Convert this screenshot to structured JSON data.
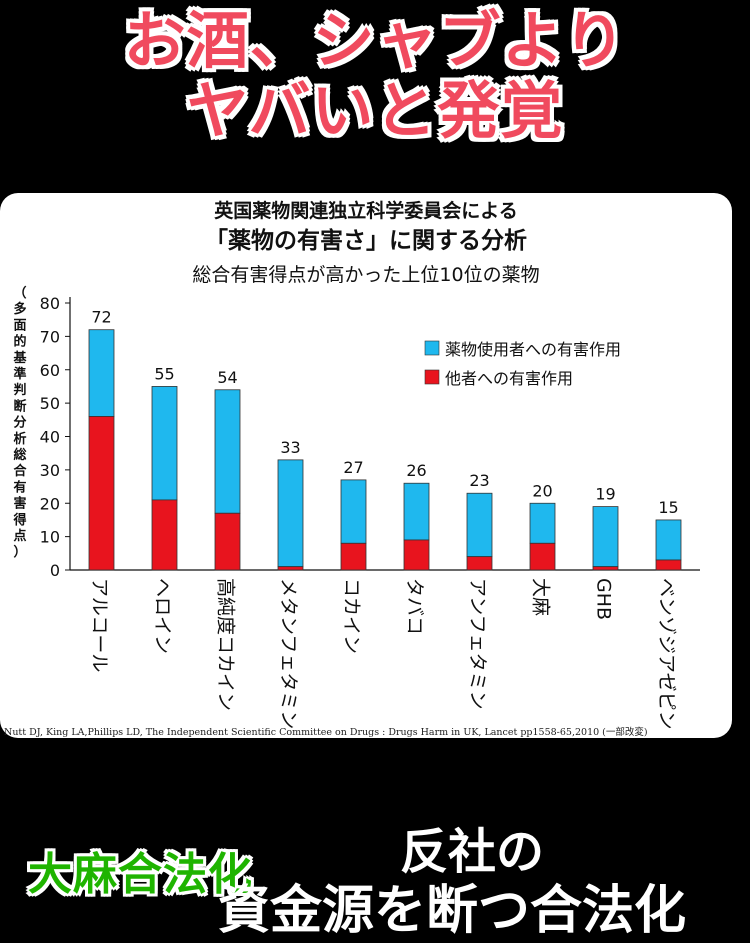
{
  "headline": {
    "line1": "お酒、シャブより",
    "line2": "ヤバいと発覚"
  },
  "chart_data": {
    "type": "bar",
    "title": "英国薬物関連独立科学委員会による",
    "subtitle": "「薬物の有害さ」に関する分析",
    "subtitle2": "総合有害得点が高かった上位10位の薬物",
    "ylabel": "（多面的基準判断分析総合有害得点）",
    "ylim": [
      0,
      80
    ],
    "yticks": [
      0,
      10,
      20,
      30,
      40,
      50,
      60,
      70,
      80
    ],
    "categories": [
      "アルコール",
      "ヘロイン",
      "高純度コカイン",
      "メタンフェタミン",
      "コカイン",
      "タバコ",
      "アンフェタミン",
      "大麻",
      "GHB",
      "ベンゾジアゼピン"
    ],
    "totals": [
      72,
      55,
      54,
      33,
      27,
      26,
      23,
      20,
      19,
      15
    ],
    "series": [
      {
        "name": "他者への有害作用",
        "color": "#e8141e",
        "values": [
          46,
          21,
          17,
          1,
          8,
          9,
          4,
          8,
          1,
          3
        ]
      },
      {
        "name": "薬物使用者への有害作用",
        "color": "#1fb8ee",
        "values": [
          26,
          34,
          37,
          32,
          19,
          17,
          19,
          12,
          18,
          12
        ]
      }
    ],
    "legend_position": "top-right",
    "source": "Nutt DJ, King LA,Phillips LD, The Independent Scientific Committee on Drugs : Drugs Harm in UK, Lancet  pp1558-65,2010  (一部改変)"
  },
  "bottom": {
    "green_text": "大麻合法化",
    "white_line1": "反社の",
    "white_line2": "資金源を断つ合法化"
  }
}
